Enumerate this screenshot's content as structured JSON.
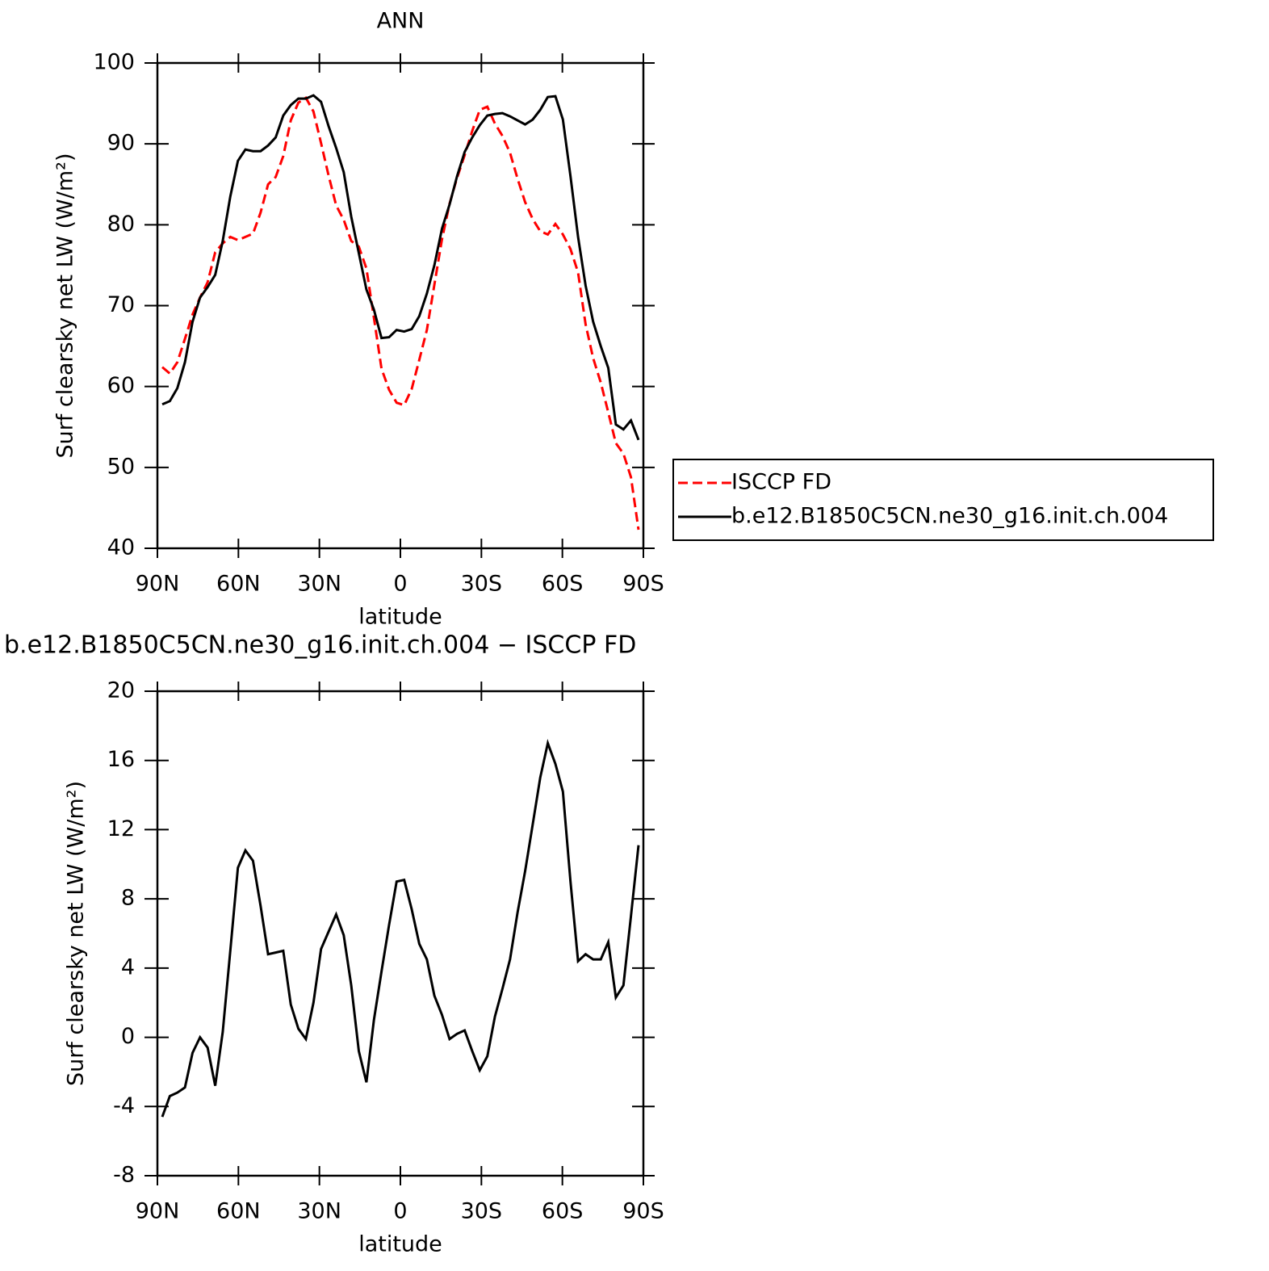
{
  "chart_data": [
    {
      "type": "line",
      "title": "ANN",
      "xlabel": "latitude",
      "ylabel": "Surf clearsky net LW (W/m²)",
      "x": [
        88.2,
        85.4,
        82.6,
        79.8,
        77,
        74.2,
        71.4,
        68.6,
        65.8,
        63,
        60.2,
        57.4,
        54.6,
        51.8,
        49,
        46.2,
        43.4,
        40.6,
        37.8,
        35,
        32.2,
        29.4,
        26.6,
        23.8,
        21,
        18.2,
        15.4,
        12.6,
        9.8,
        7,
        4.2,
        1.4,
        -1.4,
        -4.2,
        -7,
        -9.8,
        -12.6,
        -15.4,
        -18.2,
        -21,
        -23.8,
        -26.6,
        -29.4,
        -32.2,
        -35,
        -37.8,
        -40.6,
        -43.4,
        -46.2,
        -49,
        -51.8,
        -54.6,
        -57.4,
        -60.2,
        -63,
        -65.8,
        -68.6,
        -71.4,
        -74.2,
        -77,
        -79.8,
        -82.6,
        -85.4,
        -88.2
      ],
      "series": [
        {
          "name": "ISCCP FD",
          "color": "#ff0000",
          "style": "dashed",
          "values": [
            62.4,
            61.6,
            63.0,
            65.9,
            68.9,
            71.0,
            72.9,
            76.6,
            77.7,
            78.5,
            78.1,
            78.5,
            78.9,
            81.5,
            85.0,
            85.9,
            88.5,
            92.9,
            95.1,
            95.7,
            94.0,
            90.1,
            86.1,
            82.4,
            80.6,
            78.0,
            77.3,
            74.6,
            68.5,
            62.2,
            59.6,
            58.0,
            57.7,
            59.7,
            63.3,
            67.0,
            72.6,
            78.2,
            82.6,
            85.8,
            88.6,
            91.6,
            94.2,
            94.6,
            92.5,
            91.0,
            88.9,
            85.7,
            82.8,
            80.7,
            79.2,
            78.8,
            80.1,
            78.8,
            77.0,
            74.1,
            67.7,
            63.5,
            60.5,
            56.8,
            53.0,
            51.7,
            48.8,
            42.3
          ]
        },
        {
          "name": "b.e12.B1850C5CN.ne30_g16.init.ch.004",
          "color": "#000000",
          "style": "solid",
          "values": [
            57.8,
            58.2,
            59.8,
            63,
            68,
            71,
            72.3,
            73.8,
            78,
            83.5,
            87.9,
            89.3,
            89.1,
            89.1,
            89.8,
            90.8,
            93.5,
            94.8,
            95.6,
            95.6,
            96,
            95.2,
            92.2,
            89.5,
            86.5,
            81,
            76.5,
            72,
            69.5,
            66,
            66.1,
            67,
            66.8,
            67.1,
            68.7,
            71.5,
            75,
            79.5,
            82.5,
            86,
            89,
            90.8,
            92.3,
            93.5,
            93.7,
            93.8,
            93.4,
            92.9,
            92.4,
            93,
            94.2,
            95.8,
            95.9,
            93,
            86,
            78.5,
            72.5,
            68,
            65,
            62.3,
            55.3,
            54.7,
            55.8,
            53.4
          ]
        }
      ],
      "xlim": [
        90,
        -90
      ],
      "xticks": [
        {
          "value": 90,
          "label": "90N"
        },
        {
          "value": 60,
          "label": "60N"
        },
        {
          "value": 30,
          "label": "30N"
        },
        0,
        {
          "value": -30,
          "label": "30S"
        },
        {
          "value": -60,
          "label": "60S"
        },
        {
          "value": -90,
          "label": "90S"
        }
      ],
      "ylim": [
        40,
        100
      ],
      "yticks": [
        40,
        50,
        60,
        70,
        80,
        90,
        100
      ],
      "legend": "right"
    },
    {
      "type": "line",
      "title": "b.e12.B1850C5CN.ne30_g16.init.ch.004 − ISCCP FD",
      "xlabel": "latitude",
      "ylabel": "Surf clearsky net LW (W/m²)",
      "x": [
        88.2,
        85.4,
        82.6,
        79.8,
        77,
        74.2,
        71.4,
        68.6,
        65.8,
        63,
        60.2,
        57.4,
        54.6,
        51.8,
        49,
        46.2,
        43.4,
        40.6,
        37.8,
        35,
        32.2,
        29.4,
        26.6,
        23.8,
        21,
        18.2,
        15.4,
        12.6,
        9.8,
        7,
        4.2,
        1.4,
        -1.4,
        -4.2,
        -7,
        -9.8,
        -12.6,
        -15.4,
        -18.2,
        -21,
        -23.8,
        -26.6,
        -29.4,
        -32.2,
        -35,
        -37.8,
        -40.6,
        -43.4,
        -46.2,
        -49,
        -51.8,
        -54.6,
        -57.4,
        -60.2,
        -63,
        -65.8,
        -68.6,
        -71.4,
        -74.2,
        -77,
        -79.8,
        -82.6,
        -85.4,
        -88.2
      ],
      "values": [
        -4.6,
        -3.4,
        -3.2,
        -2.9,
        -0.9,
        0,
        -0.6,
        -2.8,
        0.3,
        5,
        9.8,
        10.8,
        10.2,
        7.6,
        4.8,
        4.9,
        5.0,
        1.9,
        0.5,
        -0.1,
        2,
        5.1,
        6.1,
        7.1,
        5.9,
        3,
        -0.8,
        -2.6,
        1,
        3.8,
        6.5,
        9,
        9.1,
        7.4,
        5.4,
        4.5,
        2.4,
        1.3,
        -0.1,
        0.2,
        0.4,
        -0.8,
        -1.9,
        -1.1,
        1.2,
        2.8,
        4.5,
        7.2,
        9.6,
        12.3,
        15,
        17,
        15.8,
        14.2,
        9,
        4.4,
        4.8,
        4.5,
        4.5,
        5.5,
        2.3,
        3,
        7,
        11.1
      ],
      "color": "#000000",
      "xlim": [
        90,
        -90
      ],
      "xticks": [
        {
          "value": 90,
          "label": "90N"
        },
        {
          "value": 60,
          "label": "60N"
        },
        {
          "value": 30,
          "label": "30N"
        },
        0,
        {
          "value": -30,
          "label": "30S"
        },
        {
          "value": -60,
          "label": "60S"
        },
        {
          "value": -90,
          "label": "90S"
        }
      ],
      "ylim": [
        -8,
        20
      ],
      "yticks": [
        -8,
        -4,
        0,
        4,
        8,
        12,
        16,
        20
      ]
    }
  ]
}
